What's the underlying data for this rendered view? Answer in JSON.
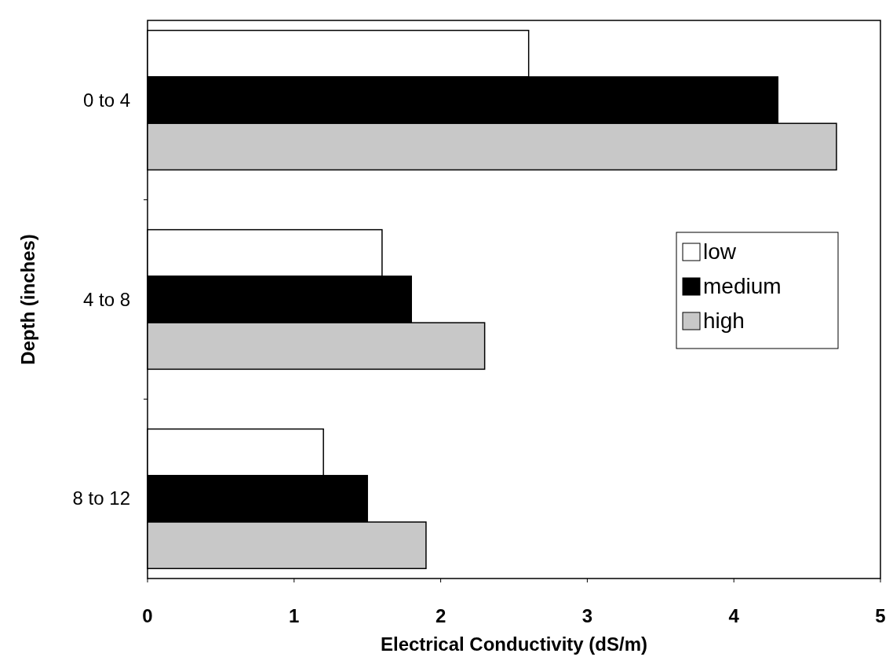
{
  "chart_data": {
    "type": "bar",
    "orientation": "horizontal",
    "xlabel": "Electrical Conductivity (dS/m)",
    "ylabel": "Depth (inches)",
    "categories": [
      "0 to 4",
      "4 to 8",
      "8 to 12"
    ],
    "series": [
      {
        "name": "low",
        "color": "#ffffff",
        "values": [
          2.6,
          1.6,
          1.2
        ]
      },
      {
        "name": "medium",
        "color": "#000000",
        "values": [
          4.3,
          1.8,
          1.5
        ]
      },
      {
        "name": "high",
        "color": "#c8c8c8",
        "values": [
          4.7,
          2.3,
          1.9
        ]
      }
    ],
    "xlim": [
      0,
      5
    ],
    "xticks": [
      0,
      1,
      2,
      3,
      4,
      5
    ],
    "legend": "right",
    "grid": false
  }
}
